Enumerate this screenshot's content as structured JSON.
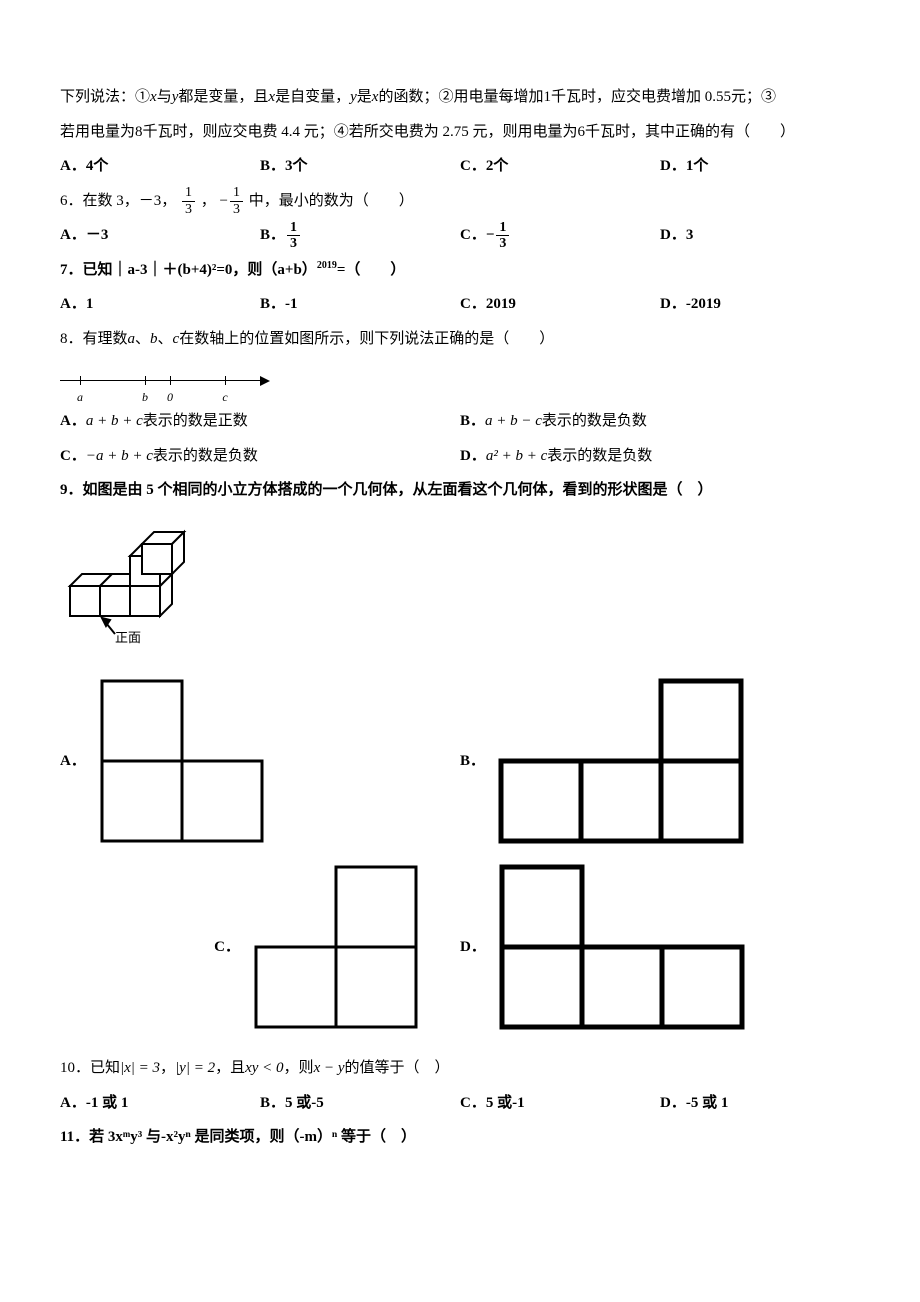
{
  "q5": {
    "intro1": "下列说法：①",
    "var1": "x",
    "intro2": "与",
    "var2": "y",
    "intro3": "都是变量，且",
    "intro4": "是自变量，",
    "intro5": "是",
    "intro6": "的函数；②用电量每增加1千瓦时，应交电费增加 0.55元；③",
    "line2a": "若用电量为8千瓦时，则应交电费 4.4 元；④若所交电费为 2.75 元，则用电量为6千瓦时，其中正确的有（　　）",
    "A": "A．4个",
    "B": "B．3个",
    "C": "C．2个",
    "D": "D．1个"
  },
  "q6": {
    "stem1": "6．在数 3，－3，",
    "frac1_num": "1",
    "frac1_den": "3",
    "stem2": "，",
    "neg": "−",
    "frac2_num": "1",
    "frac2_den": "3",
    "stem3": "中，最小的数为（　　）",
    "A": "A．－3",
    "B_pre": "B．",
    "B_num": "1",
    "B_den": "3",
    "C_pre": "C．",
    "C_neg": "−",
    "C_num": "1",
    "C_den": "3",
    "D": "D．3"
  },
  "q7": {
    "stem": "7．已知｜a-3｜＋(b+4)²=0，则（a+b）",
    "exp": "2019",
    "stem2": "=（　　）",
    "A": "A．1",
    "B": "B．-1",
    "C": "C．2019",
    "D": "D．-2019"
  },
  "q8": {
    "stem1": "8．有理数",
    "a": "a",
    "b": "b",
    "c": "c",
    "stem2": "、",
    "stem3": "在数轴上的位置如图所示，则下列说法正确的是（　　）",
    "numline": {
      "ticks": [
        20,
        85,
        110,
        165
      ],
      "labels": [
        "a",
        "b",
        "0",
        "c"
      ]
    },
    "A_pre": "A．",
    "A_expr": "a + b + c",
    "A_post": "表示的数是正数",
    "B_pre": "B．",
    "B_expr": "a + b − c",
    "B_post": "表示的数是负数",
    "C_pre": "C．",
    "C_expr": "−a + b + c",
    "C_post": "表示的数是负数",
    "D_pre": "D．",
    "D_expr": "a² + b + c",
    "D_post": "表示的数是负数"
  },
  "q9": {
    "stem": "9．如图是由 5 个相同的小立方体搭成的一个几何体，从左面看这个几何体，看到的形状图是（　）",
    "front_label": "正面",
    "shapes": {
      "cell": 80,
      "stroke": "#000000",
      "stroke_thin": 3,
      "stroke_thick": 5,
      "A": {
        "label": "A．",
        "width": 2,
        "height": 2,
        "cells": [
          [
            0,
            0
          ],
          [
            0,
            1
          ],
          [
            1,
            1
          ]
        ]
      },
      "B": {
        "label": "B．",
        "width": 3,
        "height": 2,
        "cells": [
          [
            2,
            0
          ],
          [
            0,
            1
          ],
          [
            1,
            1
          ],
          [
            2,
            1
          ]
        ]
      },
      "C": {
        "label": "C．",
        "width": 2,
        "height": 2,
        "cells": [
          [
            1,
            0
          ],
          [
            0,
            1
          ],
          [
            1,
            1
          ]
        ]
      },
      "D": {
        "label": "D．",
        "width": 3,
        "height": 2,
        "cells": [
          [
            0,
            0
          ],
          [
            0,
            1
          ],
          [
            1,
            1
          ],
          [
            2,
            1
          ]
        ]
      }
    }
  },
  "q10": {
    "stem1": "10．已知",
    "abs1": "|x| = 3",
    "stem2": "，",
    "abs2": "|y| = 2",
    "stem3": "，且",
    "cond": "xy < 0",
    "stem4": "，则",
    "expr": "x − y",
    "stem5": "的值等于（　）",
    "A": "A．-1 或 1",
    "B": "B．5 或-5",
    "C": "C．5 或-1",
    "D": "D．-5 或 1"
  },
  "q11": {
    "stem": "11．若 3xᵐy³ 与-x²yⁿ 是同类项，则（-m）ⁿ 等于（　）"
  }
}
